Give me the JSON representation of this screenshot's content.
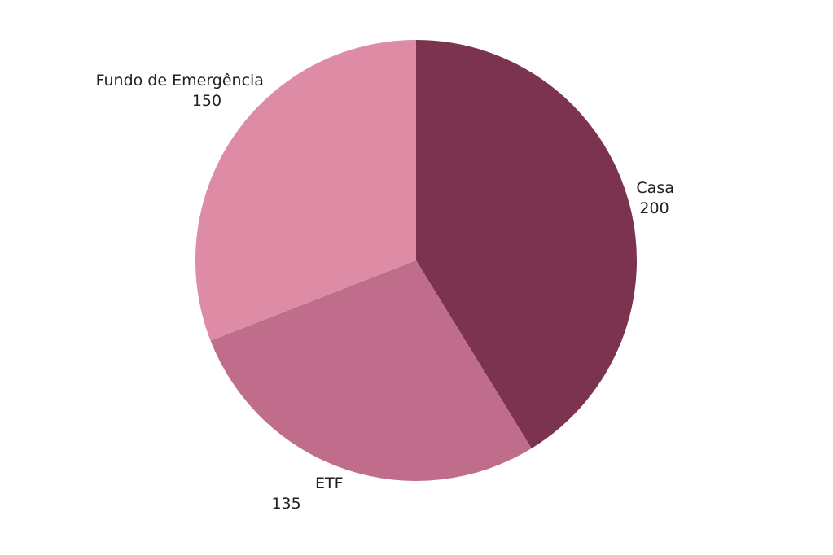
{
  "chart_data": {
    "type": "pie",
    "categories": [
      "Casa",
      "ETF",
      "Fundo de Emergência"
    ],
    "values": [
      200,
      135,
      150
    ],
    "colors": [
      "#7b3350",
      "#bf6d8a",
      "#de8ba6"
    ]
  }
}
